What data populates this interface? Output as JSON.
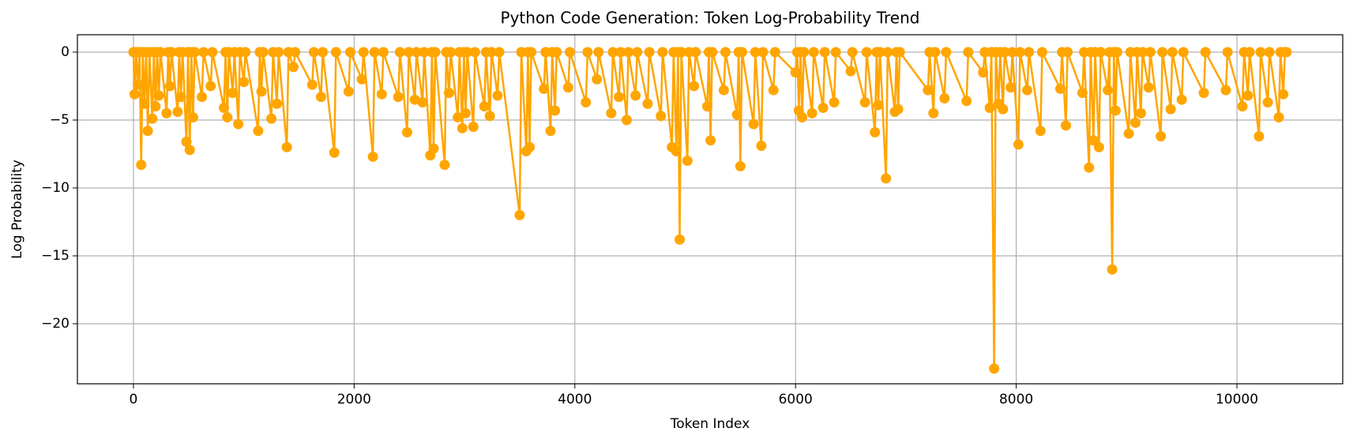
{
  "chart_data": {
    "type": "line",
    "title": "Python Code Generation: Token Log-Probability Trend",
    "xlabel": "Token Index",
    "ylabel": "Log Probability",
    "xlim": [
      -508,
      10959
    ],
    "ylim": [
      -24.42,
      1.28
    ],
    "xticks": [
      0,
      2000,
      4000,
      6000,
      8000,
      10000
    ],
    "yticks": [
      0,
      {
        "value": -5,
        "label": "−5"
      },
      {
        "value": -10,
        "label": "−10"
      },
      {
        "value": -15,
        "label": "−15"
      },
      {
        "value": -20,
        "label": "−20"
      }
    ],
    "grid": true,
    "series": [
      {
        "color": "#ffa500",
        "x": [
          0,
          10,
          25,
          40,
          55,
          70,
          85,
          100,
          115,
          130,
          145,
          170,
          185,
          200,
          215,
          230,
          245,
          300,
          315,
          330,
          345,
          400,
          415,
          430,
          445,
          480,
          495,
          510,
          525,
          540,
          555,
          620,
          635,
          700,
          715,
          820,
          835,
          850,
          865,
          900,
          915,
          950,
          965,
          1000,
          1015,
          1130,
          1145,
          1160,
          1175,
          1250,
          1265,
          1300,
          1315,
          1390,
          1405,
          1450,
          1465,
          1620,
          1635,
          1700,
          1715,
          1820,
          1835,
          1950,
          1965,
          2070,
          2085,
          2170,
          2185,
          2250,
          2265,
          2400,
          2415,
          2480,
          2495,
          2550,
          2565,
          2620,
          2635,
          2690,
          2705,
          2720,
          2735,
          2820,
          2835,
          2860,
          2875,
          2940,
          2955,
          2980,
          2995,
          3010,
          3025,
          3080,
          3095,
          3180,
          3195,
          3230,
          3245,
          3300,
          3315,
          3500,
          3515,
          3560,
          3575,
          3590,
          3605,
          3720,
          3735,
          3780,
          3795,
          3820,
          3835,
          3940,
          3955,
          4100,
          4115,
          4200,
          4215,
          4330,
          4345,
          4400,
          4415,
          4470,
          4485,
          4550,
          4565,
          4660,
          4675,
          4780,
          4795,
          4880,
          4895,
          4920,
          4935,
          4950,
          4965,
          5020,
          5035,
          5080,
          5095,
          5200,
          5215,
          5230,
          5245,
          5350,
          5365,
          5470,
          5485,
          5500,
          5515,
          5620,
          5635,
          5690,
          5705,
          5800,
          5815,
          6000,
          6015,
          6030,
          6045,
          6060,
          6075,
          6150,
          6165,
          6250,
          6265,
          6350,
          6365,
          6500,
          6515,
          6630,
          6645,
          6720,
          6735,
          6750,
          6765,
          6820,
          6835,
          6900,
          6915,
          6930,
          6945,
          7200,
          7215,
          7250,
          7265,
          7350,
          7365,
          7550,
          7565,
          7700,
          7715,
          7760,
          7775,
          7800,
          7815,
          7840,
          7855,
          7880,
          7895,
          7950,
          7965,
          8020,
          8035,
          8100,
          8115,
          8220,
          8235,
          8400,
          8415,
          8450,
          8465,
          8600,
          8615,
          8660,
          8675,
          8700,
          8715,
          8750,
          8765,
          8830,
          8845,
          8870,
          8885,
          8900,
          8915,
          9020,
          9035,
          9080,
          9095,
          9130,
          9145,
          9200,
          9215,
          9310,
          9325,
          9400,
          9415,
          9500,
          9515,
          9700,
          9715,
          9900,
          9915,
          10050,
          10065,
          10100,
          10115,
          10200,
          10215,
          10280,
          10295,
          10380,
          10395,
          10420,
          10435,
          10450
        ],
        "values": [
          0,
          -3.1,
          0,
          -2.4,
          0,
          -8.3,
          0,
          -3.8,
          0,
          -5.8,
          0,
          -4.9,
          0,
          -4.0,
          0,
          -3.2,
          0,
          -4.5,
          0,
          -2.5,
          0,
          -4.4,
          0,
          -3.3,
          0,
          -6.6,
          0,
          -7.2,
          0,
          -4.8,
          0,
          -3.3,
          0,
          -2.5,
          0,
          -4.1,
          0,
          -4.8,
          0,
          -3.0,
          0,
          -5.3,
          0,
          -2.2,
          0,
          -5.8,
          0,
          -2.9,
          0,
          -4.9,
          0,
          -3.8,
          0,
          -7.0,
          0,
          -1.1,
          0,
          -2.4,
          0,
          -3.3,
          0,
          -7.4,
          0,
          -2.9,
          0,
          -2.0,
          0,
          -7.7,
          0,
          -3.1,
          0,
          -3.3,
          0,
          -5.9,
          0,
          -3.5,
          0,
          -3.7,
          0,
          -7.6,
          0,
          -7.1,
          0,
          -8.3,
          0,
          -3.0,
          0,
          -4.8,
          0,
          -5.6,
          0,
          -4.5,
          0,
          -5.5,
          0,
          -4.0,
          0,
          -4.7,
          0,
          -3.2,
          0,
          -12.0,
          0,
          -7.3,
          0,
          -7.0,
          0,
          -2.7,
          0,
          -5.8,
          0,
          -4.3,
          0,
          -2.6,
          0,
          -3.7,
          0,
          -2.0,
          0,
          -4.5,
          0,
          -3.3,
          0,
          -5.0,
          0,
          -3.2,
          0,
          -3.8,
          0,
          -4.7,
          0,
          -7.0,
          0,
          -7.3,
          0,
          -13.8,
          0,
          -8.0,
          0,
          -2.5,
          0,
          -4.0,
          0,
          -6.5,
          0,
          -2.8,
          0,
          -4.6,
          0,
          -8.4,
          0,
          -5.3,
          0,
          -6.9,
          0,
          -2.8,
          0,
          -1.5,
          0,
          -4.3,
          0,
          -4.8,
          0,
          -4.5,
          0,
          -4.1,
          0,
          -3.7,
          0,
          -1.4,
          0,
          -3.7,
          0,
          -5.9,
          0,
          -3.9,
          0,
          -9.3,
          0,
          -4.4,
          0,
          -4.2,
          0,
          -2.8,
          0,
          -4.5,
          0,
          -3.4,
          0,
          -3.6,
          0,
          -1.5,
          0,
          -4.1,
          0,
          -23.3,
          0,
          -3.8,
          0,
          -4.2,
          0,
          -2.6,
          0,
          -6.8,
          0,
          -2.8,
          0,
          -5.8,
          0,
          -2.7,
          0,
          -5.4,
          0,
          -3.0,
          0,
          -8.5,
          0,
          -6.5,
          0,
          -7.0,
          0,
          -2.8,
          0,
          -16.0,
          0,
          -4.3,
          0,
          -6.0,
          0,
          -5.2,
          0,
          -4.5,
          0,
          -2.6,
          0,
          -6.2,
          0,
          -4.2,
          0,
          -3.5,
          0,
          -3.0,
          0,
          -2.8,
          0,
          -4.0,
          0,
          -3.2,
          0,
          -6.2,
          0,
          -3.7,
          0,
          -4.8,
          0,
          -3.1,
          0,
          0
        ]
      }
    ]
  }
}
